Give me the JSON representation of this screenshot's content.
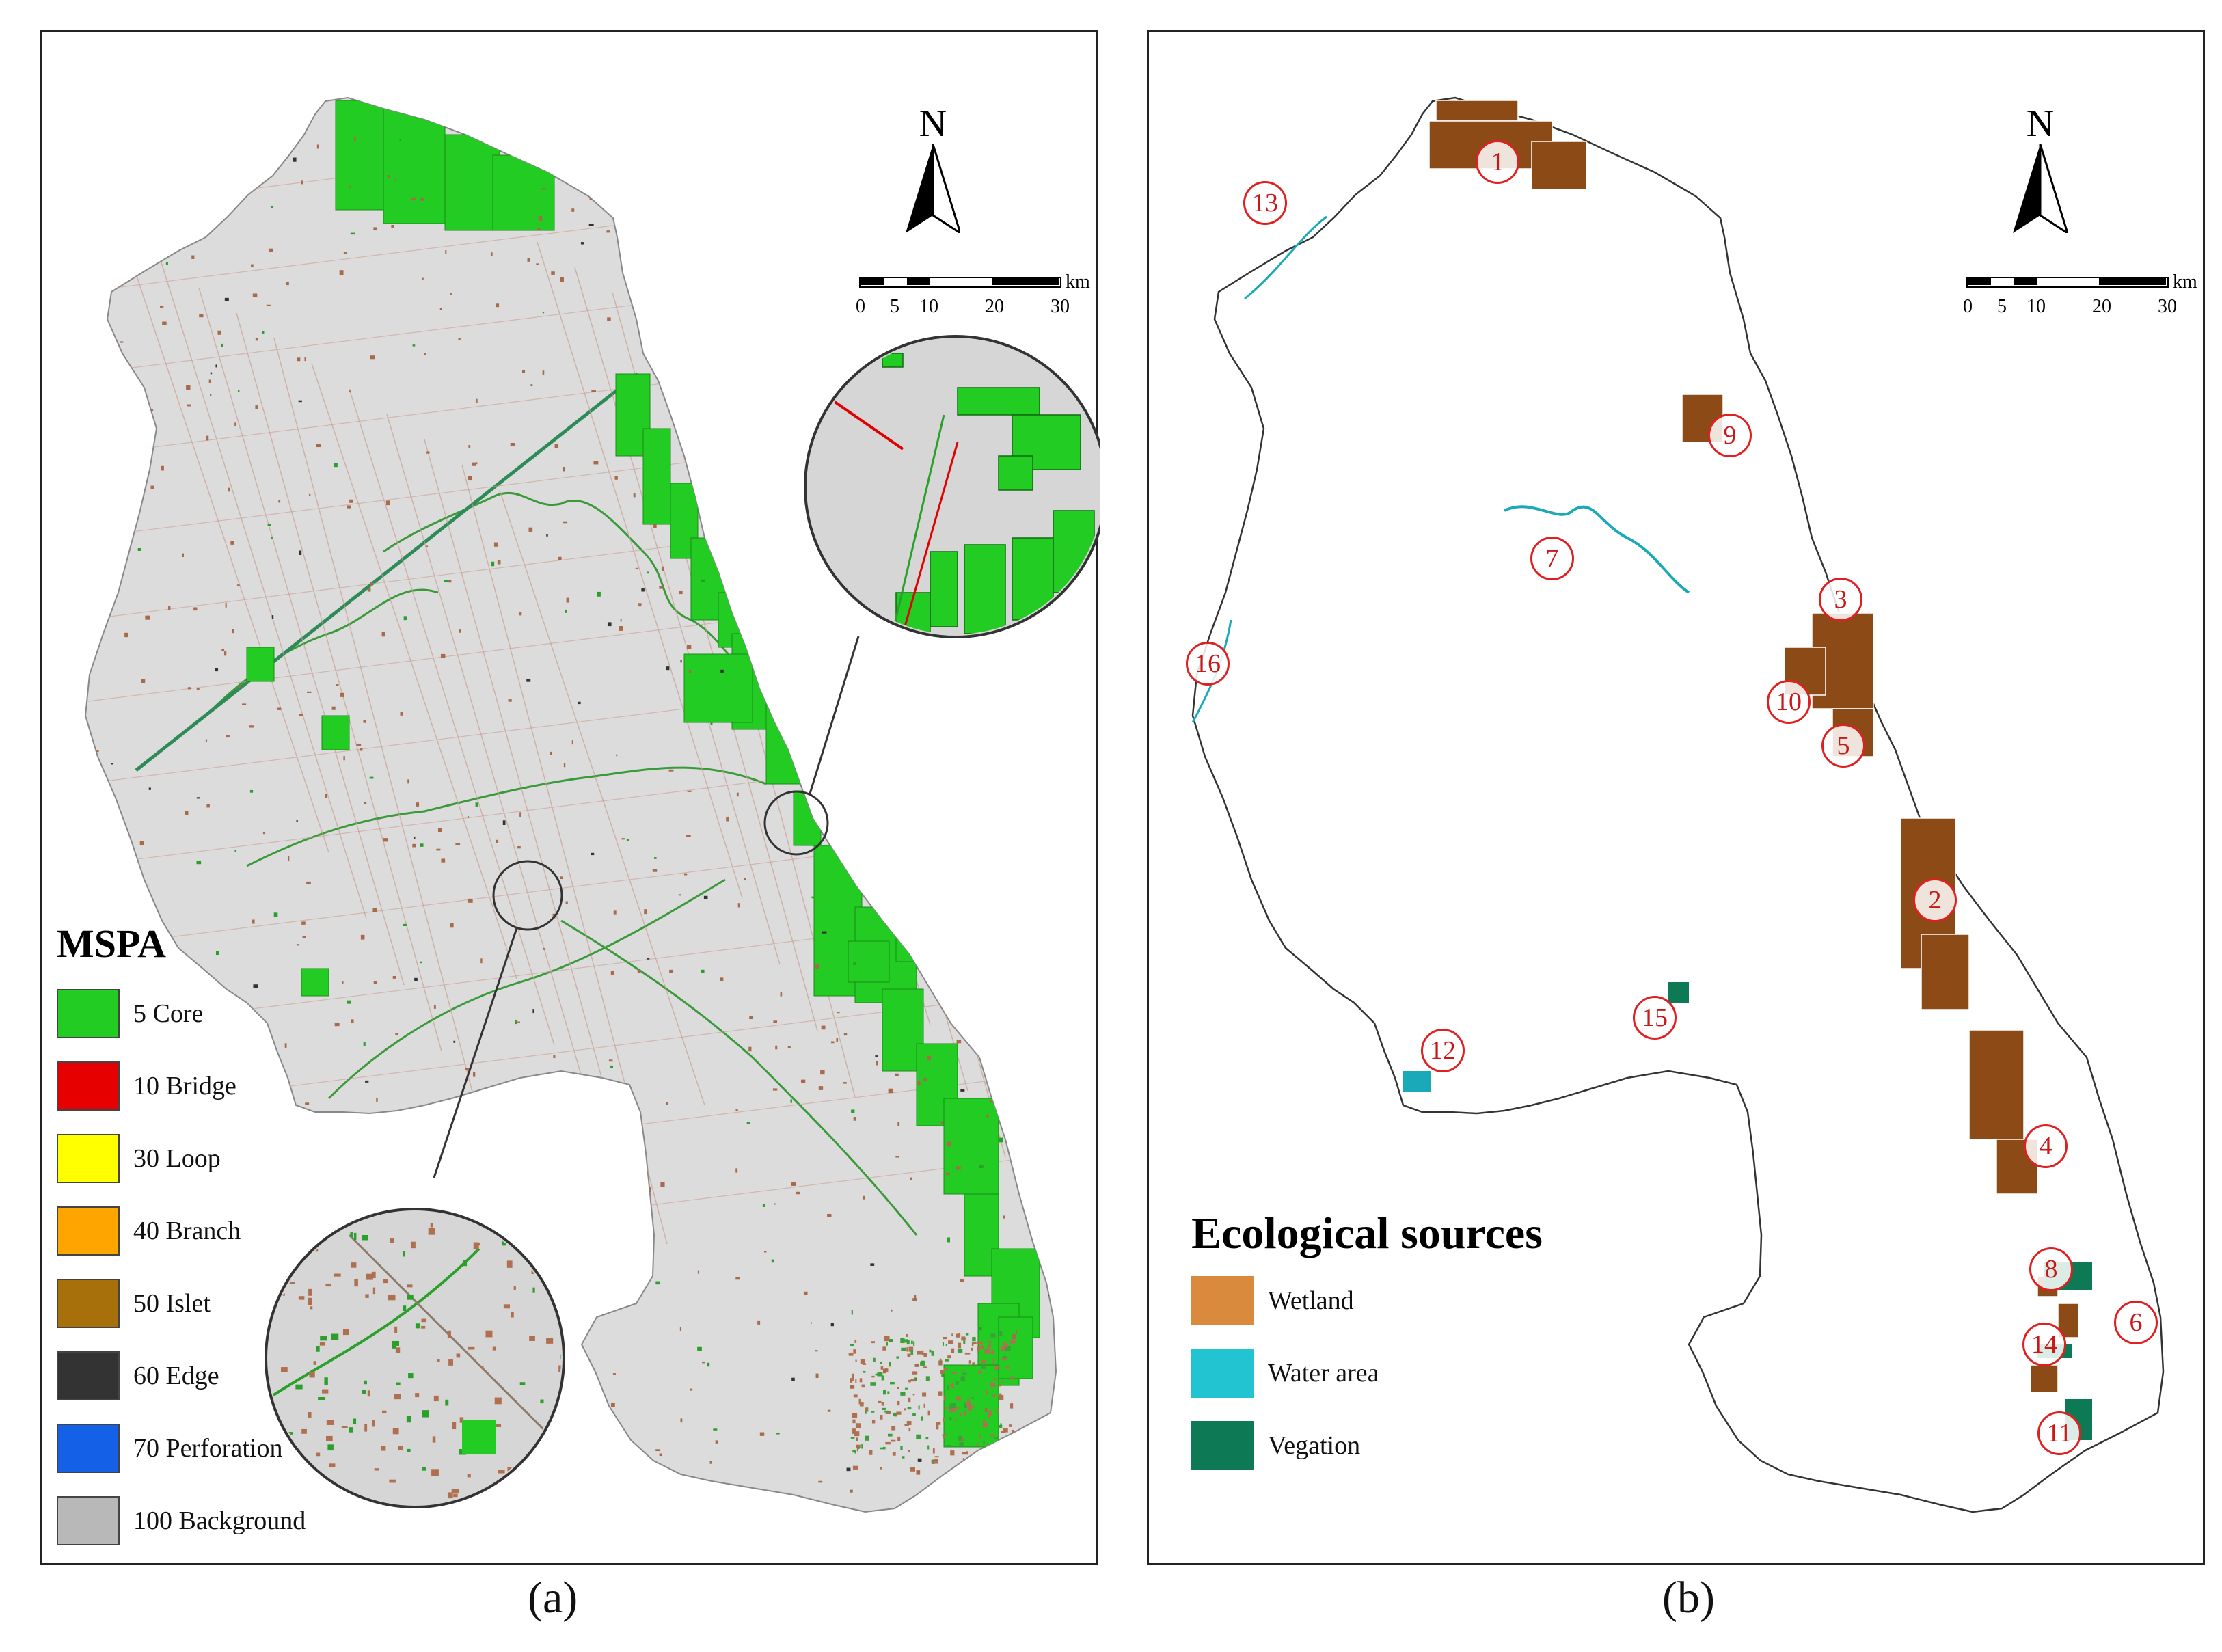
{
  "panel_a": {
    "caption": "(a)",
    "north": "N",
    "scale": {
      "ticks": [
        "0",
        "5",
        "10",
        "20",
        "30"
      ],
      "unit": "km"
    },
    "legend": {
      "title": "MSPA",
      "items": [
        {
          "label": "5  Core",
          "color": "#22cc22"
        },
        {
          "label": "10  Bridge",
          "color": "#e60000"
        },
        {
          "label": "30  Loop",
          "color": "#ffff00"
        },
        {
          "label": "40  Branch",
          "color": "#ffa500"
        },
        {
          "label": "50  Islet",
          "color": "#a8700a"
        },
        {
          "label": "60  Edge",
          "color": "#333333"
        },
        {
          "label": "70  Perforation",
          "color": "#1460e6"
        },
        {
          "label": "100  Background",
          "color": "#b8b8b8"
        }
      ]
    }
  },
  "panel_b": {
    "caption": "(b)",
    "north": "N",
    "scale": {
      "ticks": [
        "0",
        "5",
        "10",
        "20",
        "30"
      ],
      "unit": "km"
    },
    "legend": {
      "title": "Ecological sources",
      "items": [
        {
          "label": "Wetland",
          "color": "#d98a3c"
        },
        {
          "label": "Water area",
          "color": "#22c4d2"
        },
        {
          "label": "Vegation",
          "color": "#0e7a55"
        }
      ]
    },
    "markers": [
      "1",
      "2",
      "3",
      "4",
      "5",
      "6",
      "7",
      "8",
      "9",
      "10",
      "11",
      "12",
      "13",
      "14",
      "15",
      "16"
    ]
  }
}
